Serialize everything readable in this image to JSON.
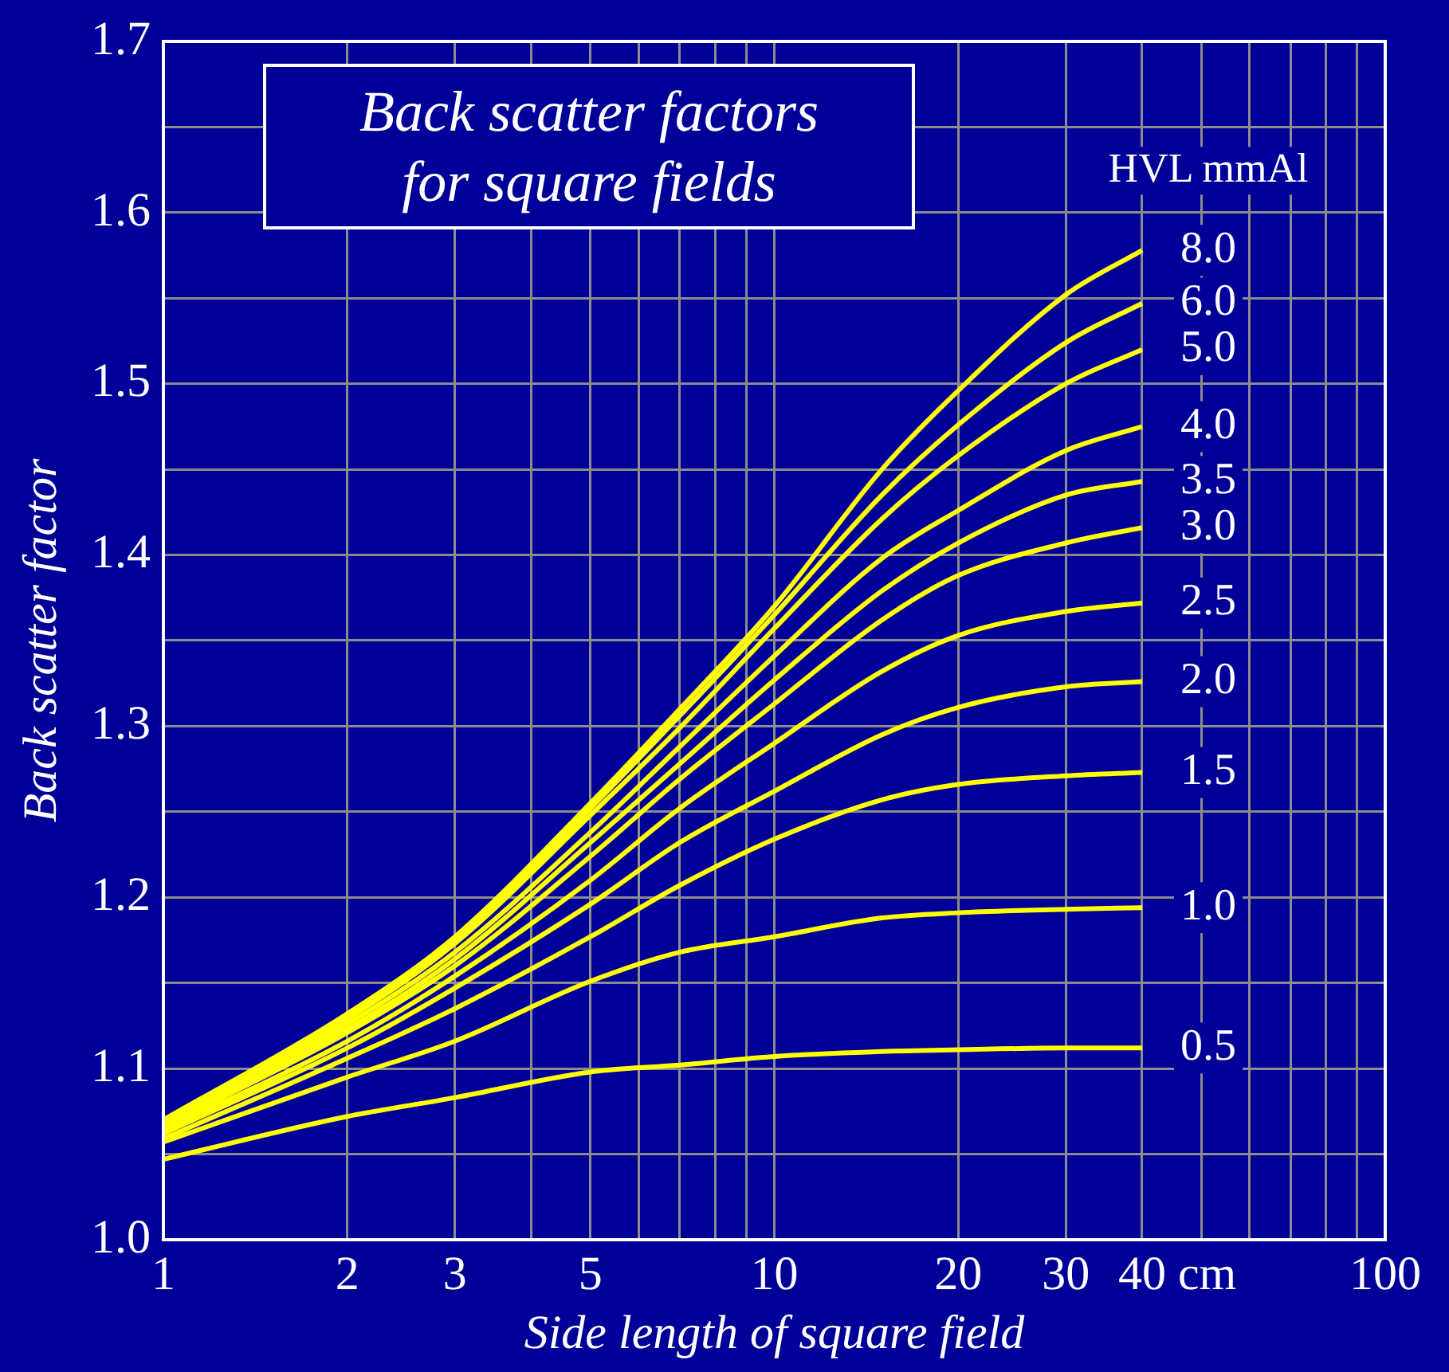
{
  "chart_data": {
    "type": "line",
    "title": "Back scatter factors\nfor square fields",
    "xlabel": "Side length of square field",
    "ylabel": "Back scatter factor",
    "legend_title": "HVL mmAl",
    "log": "x",
    "grid": true,
    "legend": false,
    "marker": "none",
    "line_style": "solid",
    "xlim": [
      1,
      100
    ],
    "xticks": [
      1,
      2,
      3,
      {
        "value": 4,
        "label": null
      },
      5,
      {
        "value": 6,
        "label": null
      },
      {
        "value": 7,
        "label": null
      },
      {
        "value": 8,
        "label": null
      },
      {
        "value": 9,
        "label": null
      },
      10,
      20,
      30,
      {
        "value": 40,
        "label": "40 cm"
      },
      {
        "value": 50,
        "label": null
      },
      {
        "value": 60,
        "label": null
      },
      {
        "value": 70,
        "label": null
      },
      {
        "value": 80,
        "label": null
      },
      {
        "value": 90,
        "label": null
      },
      100
    ],
    "ylim": [
      1.0,
      1.7
    ],
    "yticks": [
      {
        "value": 1.0,
        "label": "1.0"
      },
      {
        "value": 1.05,
        "label": null
      },
      1.1,
      {
        "value": 1.15,
        "label": null
      },
      1.2,
      {
        "value": 1.25,
        "label": null
      },
      1.3,
      {
        "value": 1.35,
        "label": null
      },
      1.4,
      {
        "value": 1.45,
        "label": null
      },
      1.5,
      {
        "value": 1.55,
        "label": null
      },
      1.6,
      {
        "value": 1.65,
        "label": null
      },
      1.7
    ],
    "x": [
      1,
      2,
      3,
      5,
      7,
      10,
      15,
      20,
      30,
      40
    ],
    "series": [
      {
        "name": "0.5",
        "color": "#ffff00",
        "values": [
          1.047,
          1.072,
          1.083,
          1.098,
          1.102,
          1.107,
          1.11,
          1.111,
          1.112,
          1.112
        ]
      },
      {
        "name": "1.0",
        "color": "#ffff00",
        "values": [
          1.057,
          1.095,
          1.116,
          1.151,
          1.168,
          1.177,
          1.188,
          1.191,
          1.193,
          1.194
        ]
      },
      {
        "name": "1.5",
        "color": "#ffff00",
        "values": [
          1.059,
          1.106,
          1.135,
          1.177,
          1.207,
          1.234,
          1.257,
          1.266,
          1.271,
          1.273
        ]
      },
      {
        "name": "2.0",
        "color": "#ffff00",
        "values": [
          1.062,
          1.112,
          1.147,
          1.196,
          1.232,
          1.262,
          1.295,
          1.311,
          1.323,
          1.326
        ]
      },
      {
        "name": "2.5",
        "color": "#ffff00",
        "values": [
          1.064,
          1.116,
          1.154,
          1.21,
          1.252,
          1.29,
          1.332,
          1.353,
          1.367,
          1.372
        ]
      },
      {
        "name": "3.0",
        "color": "#ffff00",
        "values": [
          1.066,
          1.121,
          1.16,
          1.224,
          1.269,
          1.313,
          1.362,
          1.388,
          1.407,
          1.416
        ]
      },
      {
        "name": "3.5",
        "color": "#ffff00",
        "values": [
          1.067,
          1.123,
          1.164,
          1.232,
          1.278,
          1.327,
          1.379,
          1.407,
          1.435,
          1.443
        ]
      },
      {
        "name": "4.0",
        "color": "#ffff00",
        "values": [
          1.068,
          1.126,
          1.168,
          1.238,
          1.288,
          1.341,
          1.398,
          1.426,
          1.461,
          1.475
        ]
      },
      {
        "name": "5.0",
        "color": "#ffff00",
        "values": [
          1.068,
          1.129,
          1.173,
          1.248,
          1.299,
          1.357,
          1.421,
          1.458,
          1.5,
          1.52
        ]
      },
      {
        "name": "6.0",
        "color": "#ffff00",
        "values": [
          1.069,
          1.13,
          1.175,
          1.252,
          1.306,
          1.365,
          1.435,
          1.476,
          1.524,
          1.547
        ]
      },
      {
        "name": "8.0",
        "color": "#ffff00",
        "values": [
          1.07,
          1.132,
          1.177,
          1.255,
          1.31,
          1.37,
          1.45,
          1.496,
          1.552,
          1.578
        ]
      }
    ]
  }
}
